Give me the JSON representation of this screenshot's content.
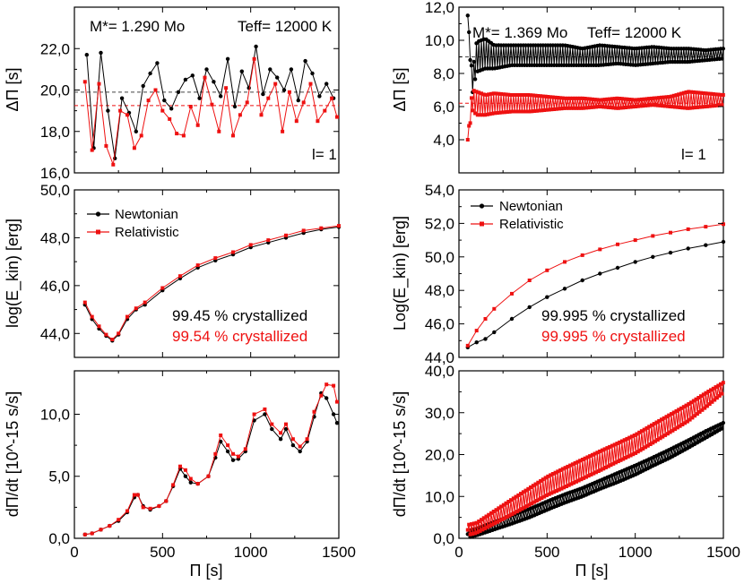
{
  "chart_data": [
    {
      "id": "tl",
      "type": "line",
      "ylabel": "ΔΠ [s]",
      "xlim": [
        0,
        1500
      ],
      "ylim": [
        16,
        24
      ],
      "yticks": [
        "16,0",
        "18,0",
        "20,0",
        "22,0"
      ],
      "annotation": {
        "mass": "M*= 1.290 Mo",
        "teff": "Teff= 12000 K",
        "ell": "l= 1"
      },
      "mean_lines": {
        "newtonian": 19.9,
        "relativistic": 19.25
      },
      "series": [
        {
          "name": "Newtonian",
          "color": "#000000",
          "x": [
            70,
            110,
            150,
            190,
            230,
            270,
            310,
            350,
            390,
            430,
            470,
            510,
            550,
            590,
            630,
            670,
            710,
            750,
            790,
            830,
            870,
            910,
            950,
            990,
            1030,
            1070,
            1110,
            1150,
            1190,
            1230,
            1270,
            1310,
            1350,
            1390,
            1430,
            1470
          ],
          "y": [
            21.7,
            17.2,
            21.8,
            19.0,
            16.7,
            19.6,
            18.9,
            18.0,
            20.2,
            20.8,
            21.3,
            19.5,
            19.1,
            19.9,
            20.5,
            20.7,
            19.6,
            21.0,
            20.4,
            19.7,
            21.5,
            19.2,
            20.9,
            20.1,
            22.1,
            19.8,
            21.0,
            20.6,
            20.0,
            21.0,
            19.5,
            21.4,
            20.8,
            19.7,
            20.3,
            19.6
          ]
        },
        {
          "name": "Relativistic",
          "color": "#ee1111",
          "x": [
            60,
            100,
            140,
            180,
            220,
            260,
            300,
            340,
            380,
            420,
            460,
            500,
            540,
            580,
            620,
            660,
            700,
            740,
            780,
            820,
            860,
            900,
            940,
            980,
            1020,
            1060,
            1100,
            1140,
            1180,
            1220,
            1260,
            1300,
            1340,
            1380,
            1420,
            1460,
            1490
          ],
          "y": [
            20.4,
            17.1,
            20.3,
            17.3,
            16.4,
            19.0,
            18.8,
            17.2,
            17.8,
            19.5,
            20.0,
            19.0,
            18.6,
            17.9,
            17.8,
            19.2,
            18.3,
            20.6,
            19.3,
            18.0,
            20.1,
            17.8,
            18.8,
            19.4,
            21.5,
            18.8,
            19.6,
            20.3,
            18.0,
            19.9,
            18.5,
            19.4,
            20.3,
            18.5,
            19.0,
            19.6,
            18.7
          ]
        }
      ]
    },
    {
      "id": "tr",
      "type": "line",
      "ylabel": "ΔΠ [s]",
      "xlim": [
        0,
        1500
      ],
      "ylim": [
        2,
        12
      ],
      "yticks": [
        "4,0",
        "6,0",
        "8,0",
        "10,0",
        "12,0"
      ],
      "annotation": {
        "mass": "M*= 1.369 Mo",
        "teff": "Teff= 12000 K",
        "ell": "l= 1"
      },
      "mean_lines": {
        "newtonian": 9.0,
        "relativistic": 6.2
      },
      "series": [
        {
          "name": "Newtonian",
          "color": "#000000",
          "osc": true,
          "x": [
            50,
            75,
            100,
            150,
            200,
            300,
            400,
            500,
            600,
            700,
            800,
            900,
            1000,
            1100,
            1200,
            1300,
            1400,
            1500
          ],
          "y": [
            11.5,
            7.3,
            9.0,
            9.2,
            9.0,
            9.1,
            9.1,
            9.1,
            9.1,
            9.0,
            9.1,
            9.1,
            9.0,
            9.1,
            9.1,
            9.1,
            9.1,
            9.2
          ],
          "amp": [
            0,
            0.6,
            0.9,
            0.9,
            0.7,
            0.6,
            0.6,
            0.6,
            0.6,
            0.5,
            0.6,
            0.5,
            0.5,
            0.5,
            0.4,
            0.4,
            0.3,
            0.3
          ]
        },
        {
          "name": "Relativistic",
          "color": "#ee1111",
          "osc": true,
          "x": [
            50,
            75,
            100,
            150,
            200,
            300,
            400,
            500,
            600,
            700,
            800,
            900,
            1000,
            1100,
            1200,
            1300,
            1400,
            1500
          ],
          "y": [
            4.0,
            6.4,
            6.2,
            6.1,
            6.2,
            6.2,
            6.2,
            6.2,
            6.2,
            6.2,
            6.2,
            6.2,
            6.2,
            6.3,
            6.3,
            6.4,
            6.4,
            6.4
          ],
          "amp": [
            0,
            0.6,
            0.7,
            0.6,
            0.6,
            0.5,
            0.5,
            0.4,
            0.3,
            0.3,
            0.2,
            0.3,
            0.2,
            0.2,
            0.3,
            0.5,
            0.4,
            0.3
          ]
        }
      ]
    },
    {
      "id": "ml",
      "type": "line",
      "ylabel": "log(E_kin) [erg]",
      "xlim": [
        0,
        1500
      ],
      "ylim": [
        43,
        50
      ],
      "yticks": [
        "44,0",
        "46,0",
        "48,0",
        "50,0"
      ],
      "legend": [
        "Newtonian",
        "Relativistic"
      ],
      "notes": [
        "99.45 % crystallized",
        "99.54 % crystallized"
      ],
      "series": [
        {
          "name": "Newtonian",
          "color": "#000000",
          "x": [
            60,
            100,
            140,
            180,
            215,
            250,
            300,
            350,
            400,
            500,
            600,
            700,
            800,
            900,
            1000,
            1100,
            1200,
            1300,
            1400,
            1500
          ],
          "y": [
            45.2,
            44.6,
            44.2,
            43.9,
            43.7,
            43.95,
            44.6,
            45.0,
            45.2,
            45.8,
            46.3,
            46.75,
            47.05,
            47.3,
            47.6,
            47.8,
            48.0,
            48.2,
            48.35,
            48.45
          ]
        },
        {
          "name": "Relativistic",
          "color": "#ee1111",
          "x": [
            60,
            100,
            140,
            180,
            215,
            250,
            300,
            350,
            400,
            500,
            600,
            700,
            800,
            900,
            1000,
            1100,
            1200,
            1300,
            1400,
            1500
          ],
          "y": [
            45.3,
            44.7,
            44.3,
            43.95,
            43.75,
            44.0,
            44.7,
            45.05,
            45.3,
            45.9,
            46.4,
            46.85,
            47.15,
            47.4,
            47.7,
            47.9,
            48.1,
            48.3,
            48.4,
            48.5
          ]
        }
      ]
    },
    {
      "id": "mr",
      "type": "line",
      "ylabel": "Log(E_kin) [erg]",
      "xlim": [
        0,
        1500
      ],
      "ylim": [
        44,
        54
      ],
      "yticks": [
        "44,0",
        "46,0",
        "48,0",
        "50,0",
        "52,0",
        "54,0"
      ],
      "legend": [
        "Newtonian",
        "Relativistic"
      ],
      "notes": [
        "99.995 % crystallized",
        "99.995 % crystallized"
      ],
      "series": [
        {
          "name": "Newtonian",
          "color": "#000000",
          "x": [
            50,
            100,
            150,
            200,
            300,
            400,
            500,
            600,
            700,
            800,
            900,
            1000,
            1100,
            1200,
            1300,
            1400,
            1500
          ],
          "y": [
            44.6,
            44.9,
            45.1,
            45.5,
            46.3,
            47.0,
            47.6,
            48.1,
            48.6,
            49.0,
            49.35,
            49.7,
            50.0,
            50.25,
            50.5,
            50.7,
            50.9
          ]
        },
        {
          "name": "Relativistic",
          "color": "#ee1111",
          "x": [
            50,
            100,
            150,
            200,
            300,
            400,
            500,
            600,
            700,
            800,
            900,
            1000,
            1100,
            1200,
            1300,
            1400,
            1500
          ],
          "y": [
            44.7,
            45.6,
            46.3,
            46.9,
            47.8,
            48.6,
            49.2,
            49.7,
            50.1,
            50.45,
            50.75,
            51.0,
            51.25,
            51.45,
            51.65,
            51.8,
            51.95
          ]
        }
      ]
    },
    {
      "id": "bl",
      "type": "line",
      "ylabel": "dΠ/dt [10^-15 s/s]",
      "xlabel": "Π [s]",
      "xlim": [
        0,
        1500
      ],
      "ylim": [
        0,
        13.5
      ],
      "xticks": [
        "0",
        "500",
        "1000",
        "1500"
      ],
      "yticks": [
        "0,0",
        "5,0",
        "10,0"
      ],
      "series": [
        {
          "name": "Newtonian",
          "color": "#000000",
          "x": [
            60,
            100,
            150,
            200,
            250,
            300,
            340,
            360,
            390,
            430,
            480,
            520,
            560,
            600,
            630,
            660,
            700,
            760,
            800,
            830,
            870,
            900,
            930,
            970,
            1020,
            1080,
            1120,
            1170,
            1200,
            1240,
            1280,
            1320,
            1360,
            1400,
            1430,
            1470,
            1490
          ],
          "y": [
            0.3,
            0.4,
            0.7,
            1.0,
            1.4,
            2.1,
            3.3,
            3.5,
            2.6,
            2.3,
            2.6,
            3.0,
            4.2,
            5.6,
            5.0,
            4.5,
            4.4,
            5.0,
            6.5,
            7.8,
            7.0,
            6.3,
            6.4,
            7.0,
            9.5,
            10.0,
            8.8,
            8.0,
            8.8,
            7.5,
            7.0,
            7.8,
            9.8,
            11.7,
            11.3,
            10.0,
            9.3
          ]
        },
        {
          "name": "Relativistic",
          "color": "#ee1111",
          "x": [
            60,
            100,
            150,
            200,
            250,
            300,
            340,
            360,
            390,
            430,
            480,
            520,
            560,
            600,
            630,
            660,
            700,
            760,
            800,
            830,
            870,
            900,
            930,
            970,
            1020,
            1080,
            1120,
            1170,
            1200,
            1240,
            1280,
            1320,
            1360,
            1400,
            1430,
            1470,
            1490
          ],
          "y": [
            0.3,
            0.4,
            0.7,
            1.0,
            1.5,
            2.2,
            3.5,
            3.5,
            2.5,
            2.4,
            2.6,
            3.0,
            4.3,
            5.8,
            5.5,
            4.8,
            4.4,
            5.0,
            6.8,
            8.3,
            7.5,
            6.8,
            6.6,
            7.2,
            10.0,
            10.4,
            9.2,
            8.5,
            9.2,
            8.0,
            7.4,
            8.0,
            10.2,
            11.5,
            12.4,
            12.3,
            11.0
          ]
        }
      ]
    },
    {
      "id": "br",
      "type": "line",
      "ylabel": "dΠ/dt [10^-15 s/s]",
      "xlabel": "Π [s]",
      "xlim": [
        0,
        1500
      ],
      "ylim": [
        0,
        40
      ],
      "xticks": [
        "0",
        "500",
        "1000",
        "1500"
      ],
      "yticks": [
        "0,0",
        "10,0",
        "20,0",
        "30,0",
        "40,0"
      ],
      "series": [
        {
          "name": "Newtonian",
          "color": "#000000",
          "osc": true,
          "x": [
            50,
            100,
            200,
            300,
            400,
            500,
            600,
            700,
            800,
            900,
            1000,
            1100,
            1200,
            1300,
            1400,
            1500
          ],
          "y": [
            1.0,
            1.5,
            3.0,
            4.5,
            6.0,
            7.8,
            9.5,
            11.0,
            12.8,
            14.5,
            16.3,
            18.3,
            20.3,
            22.5,
            24.8,
            27.0
          ],
          "amp": [
            0.8,
            0.8,
            0.9,
            1.0,
            1.0,
            1.0,
            1.0,
            1.0,
            1.0,
            1.1,
            1.1,
            1.0,
            1.0,
            0.9,
            0.8,
            0.6
          ]
        },
        {
          "name": "Relativistic",
          "color": "#ee1111",
          "osc": true,
          "x": [
            50,
            100,
            200,
            300,
            400,
            500,
            600,
            700,
            800,
            900,
            1000,
            1100,
            1200,
            1300,
            1400,
            1500
          ],
          "y": [
            2.0,
            2.5,
            5.0,
            7.5,
            10.0,
            12.5,
            14.5,
            16.5,
            18.5,
            20.5,
            22.5,
            25.0,
            27.5,
            30.0,
            33.0,
            36.0
          ],
          "amp": [
            1.2,
            1.2,
            1.5,
            1.8,
            2.0,
            2.2,
            2.3,
            2.3,
            2.3,
            2.2,
            2.2,
            2.2,
            2.1,
            2.0,
            1.7,
            1.2
          ]
        }
      ]
    }
  ]
}
